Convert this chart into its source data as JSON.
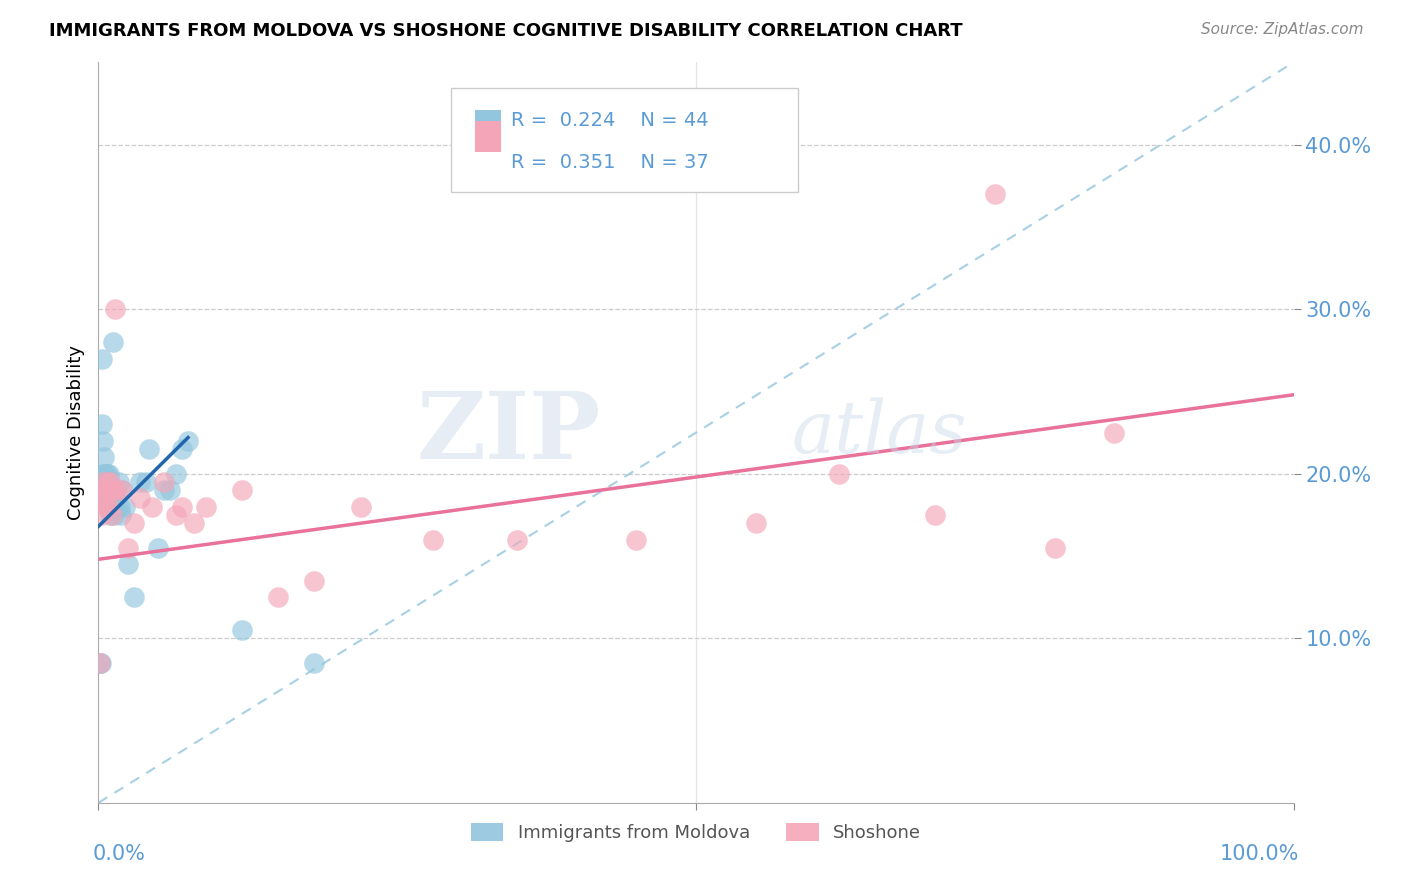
{
  "title": "IMMIGRANTS FROM MOLDOVA VS SHOSHONE COGNITIVE DISABILITY CORRELATION CHART",
  "source": "Source: ZipAtlas.com",
  "ylabel": "Cognitive Disability",
  "xlim": [
    0,
    1.0
  ],
  "ylim": [
    0,
    0.45
  ],
  "x_ticks": [
    0.0,
    0.5,
    1.0
  ],
  "x_tick_labels": [
    "0.0%",
    "",
    "100.0%"
  ],
  "y_ticks": [
    0.1,
    0.2,
    0.3,
    0.4
  ],
  "y_tick_labels": [
    "10.0%",
    "20.0%",
    "30.0%",
    "40.0%"
  ],
  "legend_r1": "R = 0.224",
  "legend_n1": "N = 44",
  "legend_r2": "R = 0.351",
  "legend_n2": "N = 37",
  "series1_label": "Immigrants from Moldova",
  "series2_label": "Shoshone",
  "color1": "#92c5de",
  "color2": "#f4a6b8",
  "color1_line": "#2166ac",
  "color2_line": "#e8729a",
  "watermark_zip": "ZIP",
  "watermark_atlas": "atlas",
  "blue_scatter_x": [
    0.001,
    0.002,
    0.003,
    0.003,
    0.004,
    0.004,
    0.005,
    0.005,
    0.006,
    0.006,
    0.007,
    0.007,
    0.008,
    0.008,
    0.008,
    0.009,
    0.009,
    0.01,
    0.01,
    0.01,
    0.011,
    0.012,
    0.013,
    0.014,
    0.015,
    0.016,
    0.017,
    0.018,
    0.019,
    0.02,
    0.022,
    0.025,
    0.03,
    0.035,
    0.04,
    0.042,
    0.05,
    0.055,
    0.06,
    0.065,
    0.07,
    0.075,
    0.12,
    0.18
  ],
  "blue_scatter_y": [
    0.085,
    0.085,
    0.27,
    0.23,
    0.2,
    0.22,
    0.2,
    0.21,
    0.19,
    0.2,
    0.185,
    0.2,
    0.18,
    0.19,
    0.195,
    0.185,
    0.2,
    0.175,
    0.18,
    0.185,
    0.18,
    0.28,
    0.175,
    0.18,
    0.185,
    0.18,
    0.195,
    0.18,
    0.175,
    0.19,
    0.18,
    0.145,
    0.125,
    0.195,
    0.195,
    0.215,
    0.155,
    0.19,
    0.19,
    0.2,
    0.215,
    0.22,
    0.105,
    0.085
  ],
  "pink_scatter_x": [
    0.001,
    0.002,
    0.003,
    0.004,
    0.005,
    0.006,
    0.007,
    0.008,
    0.009,
    0.01,
    0.011,
    0.012,
    0.014,
    0.015,
    0.02,
    0.025,
    0.03,
    0.035,
    0.045,
    0.055,
    0.065,
    0.07,
    0.08,
    0.09,
    0.12,
    0.15,
    0.18,
    0.22,
    0.28,
    0.35,
    0.45,
    0.55,
    0.62,
    0.7,
    0.75,
    0.8,
    0.85
  ],
  "pink_scatter_y": [
    0.085,
    0.185,
    0.175,
    0.195,
    0.185,
    0.18,
    0.19,
    0.195,
    0.18,
    0.195,
    0.175,
    0.19,
    0.3,
    0.19,
    0.19,
    0.155,
    0.17,
    0.185,
    0.18,
    0.195,
    0.175,
    0.18,
    0.17,
    0.18,
    0.19,
    0.125,
    0.135,
    0.18,
    0.16,
    0.16,
    0.16,
    0.17,
    0.2,
    0.175,
    0.37,
    0.155,
    0.225
  ],
  "blue_line_x": [
    0.0,
    0.075
  ],
  "blue_line_y": [
    0.168,
    0.222
  ],
  "pink_line_x": [
    0.0,
    1.0
  ],
  "pink_line_y": [
    0.148,
    0.248
  ],
  "diag_line_x": [
    0.0,
    1.0
  ],
  "diag_line_y": [
    0.0,
    0.45
  ]
}
